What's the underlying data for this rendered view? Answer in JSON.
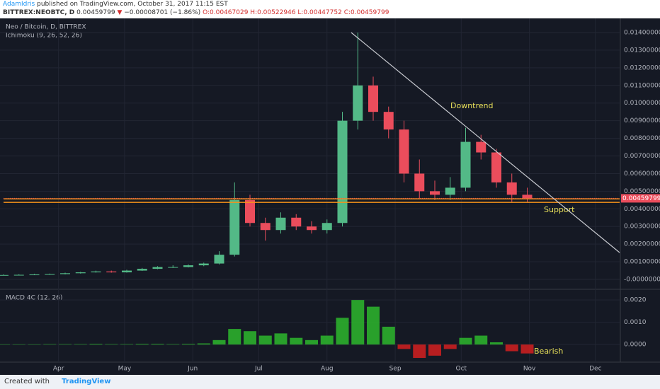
{
  "header": {
    "author": "AdamIdris",
    "published": "published on TradingView.com, October 31, 2017 11:15 EST",
    "symbol": "BITTREX:NEOBTC, D",
    "price": "0.00459799",
    "arrow": "▼",
    "change": "−0.00008701 (−1.86%)",
    "open": "O:0.00467029",
    "high": "H:0.00522946",
    "low": "L:0.00447752",
    "close": "C:0.00459799"
  },
  "chart_data": [
    {
      "type": "candlestick",
      "title": "Neo / Bitcoin, D, BITTREX",
      "subtitle": "Ichimoku (9, 26, 52, 26)",
      "x": [
        -25,
        -18,
        -11,
        -4,
        3,
        10,
        17,
        24,
        31,
        38,
        45,
        52,
        59,
        66,
        73,
        80,
        87,
        94,
        101,
        108,
        115,
        122,
        129,
        136,
        143,
        150,
        157,
        164,
        171,
        178,
        185,
        192,
        199,
        206,
        213
      ],
      "open": [
        0.00024,
        0.00025,
        0.00026,
        0.00028,
        0.0003,
        0.00035,
        0.0004,
        0.00045,
        0.0004,
        0.0005,
        0.0006,
        0.0007,
        0.0007,
        0.0008,
        0.0009,
        0.0014,
        0.0045,
        0.0032,
        0.0028,
        0.0035,
        0.003,
        0.0028,
        0.0032,
        0.009,
        0.011,
        0.0095,
        0.0085,
        0.006,
        0.005,
        0.0048,
        0.0052,
        0.0078,
        0.0072,
        0.0055,
        0.0048
      ],
      "high": [
        0.00028,
        0.00029,
        0.00031,
        0.00033,
        0.00038,
        0.00043,
        0.0005,
        0.0005,
        0.00055,
        0.00065,
        0.00075,
        0.0008,
        0.00085,
        0.00095,
        0.0016,
        0.0055,
        0.0048,
        0.0035,
        0.0038,
        0.0037,
        0.0033,
        0.0034,
        0.0095,
        0.014,
        0.0115,
        0.0098,
        0.009,
        0.0068,
        0.0056,
        0.0058,
        0.0086,
        0.0082,
        0.0074,
        0.006,
        0.0052
      ],
      "low": [
        0.00022,
        0.00023,
        0.00024,
        0.00026,
        0.00028,
        0.00033,
        0.00038,
        0.00038,
        0.00038,
        0.00048,
        0.00058,
        0.00065,
        0.00068,
        0.00075,
        0.00085,
        0.0013,
        0.003,
        0.0022,
        0.0026,
        0.0028,
        0.0026,
        0.0026,
        0.003,
        0.0085,
        0.009,
        0.008,
        0.0055,
        0.0046,
        0.0045,
        0.0045,
        0.005,
        0.0068,
        0.0052,
        0.0044,
        0.0044
      ],
      "close": [
        0.00025,
        0.00026,
        0.00028,
        0.0003,
        0.00035,
        0.0004,
        0.00045,
        0.0004,
        0.0005,
        0.0006,
        0.0007,
        0.0007,
        0.0008,
        0.0009,
        0.0014,
        0.0045,
        0.0032,
        0.0028,
        0.0035,
        0.003,
        0.0028,
        0.0032,
        0.009,
        0.011,
        0.0095,
        0.0085,
        0.006,
        0.005,
        0.0048,
        0.0052,
        0.0078,
        0.0072,
        0.0055,
        0.0048,
        0.0046
      ],
      "up_color": "#53b987",
      "down_color": "#eb4d5c",
      "xlim": [
        -25,
        255
      ],
      "xticks": [
        {
          "value": 0,
          "label": "Apr"
        },
        {
          "value": 30,
          "label": "May"
        },
        {
          "value": 61,
          "label": "Jun"
        },
        {
          "value": 91,
          "label": "Jul"
        },
        {
          "value": 122,
          "label": "Aug"
        },
        {
          "value": 153,
          "label": "Sep"
        },
        {
          "value": 183,
          "label": "Oct"
        },
        {
          "value": 214,
          "label": "Nov"
        },
        {
          "value": 244,
          "label": "Dec"
        }
      ],
      "ylim": [
        -0.00052,
        0.01424
      ],
      "yticks": [
        {
          "value": 0.014,
          "label": "0.01400000"
        },
        {
          "value": 0.013,
          "label": "0.01300000"
        },
        {
          "value": 0.012,
          "label": "0.01200000"
        },
        {
          "value": 0.011,
          "label": "0.01100000"
        },
        {
          "value": 0.01,
          "label": "0.01000000"
        },
        {
          "value": 0.009,
          "label": "0.00900000"
        },
        {
          "value": 0.008,
          "label": "0.00800000"
        },
        {
          "value": 0.007,
          "label": "0.00700000"
        },
        {
          "value": 0.006,
          "label": "0.00600000"
        },
        {
          "value": 0.005,
          "label": "0.00500000"
        },
        {
          "value": 0.004,
          "label": "0.00400000"
        },
        {
          "value": 0.003,
          "label": "0.00300000"
        },
        {
          "value": 0.002,
          "label": "0.00200000"
        },
        {
          "value": 0.001,
          "label": "0.00100000"
        },
        {
          "value": 0,
          "label": "-0.00000000"
        }
      ],
      "grid": true,
      "last_price": {
        "value": 0.00459799,
        "label": "0.00459799"
      },
      "trendline": {
        "label": "Downtrend",
        "x": [
          133,
          255
        ],
        "y": [
          0.014,
          0.00152
        ],
        "color": "#c8cad0"
      },
      "support": {
        "label": "Support",
        "values": [
          0.00457,
          0.00437
        ],
        "color": "#f7931a"
      }
    },
    {
      "type": "bar",
      "title": "MACD 4C (12, 26)",
      "annotation": "Bearish",
      "x": [
        -25,
        -18,
        -11,
        -4,
        3,
        10,
        17,
        24,
        31,
        38,
        45,
        52,
        59,
        66,
        73,
        80,
        87,
        94,
        101,
        108,
        115,
        122,
        129,
        136,
        143,
        150,
        157,
        164,
        171,
        178,
        185,
        192,
        199,
        206,
        213
      ],
      "values": [
        1e-05,
        1e-05,
        1e-05,
        2e-05,
        2e-05,
        2e-05,
        3e-05,
        2e-05,
        2e-05,
        3e-05,
        3e-05,
        2e-05,
        3e-05,
        5e-05,
        0.0002,
        0.0007,
        0.0006,
        0.0004,
        0.0005,
        0.0003,
        0.0002,
        0.0004,
        0.0012,
        0.002,
        0.0017,
        0.0008,
        -0.0002,
        -0.0006,
        -0.0005,
        -0.0002,
        0.0003,
        0.0004,
        0.0001,
        -0.0003,
        -0.0004
      ],
      "up_color": "#2db82d",
      "down_color": "#d42020",
      "ylim": [
        -0.00079,
        0.00245
      ],
      "yticks": [
        {
          "value": 0.002,
          "label": "0.0020"
        },
        {
          "value": 0.001,
          "label": "0.0010"
        },
        {
          "value": 0,
          "label": "0.0000"
        }
      ],
      "grid": true
    }
  ],
  "footer": {
    "created": "Created with",
    "brand": "TradingView"
  }
}
